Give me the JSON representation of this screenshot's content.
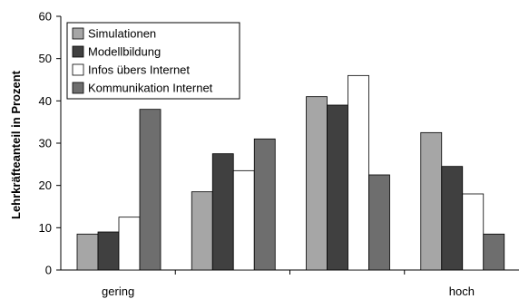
{
  "chart_data": {
    "type": "bar",
    "title": "",
    "xlabel": "",
    "ylabel": "Lehrkräfteanteil in Prozent",
    "ylim": [
      0,
      60
    ],
    "yticks": [
      0,
      10,
      20,
      30,
      40,
      50,
      60
    ],
    "grid": false,
    "legend_position": "top-left",
    "categories": [
      "gering",
      "",
      "",
      "hoch"
    ],
    "series": [
      {
        "name": "Simulationen",
        "color": "#a6a6a6",
        "values": [
          8.5,
          18.5,
          41,
          32.5
        ]
      },
      {
        "name": "Modellbildung",
        "color": "#404040",
        "values": [
          9,
          27.5,
          39,
          24.5
        ]
      },
      {
        "name": "Infos übers Internet",
        "color": "#ffffff",
        "values": [
          12.5,
          23.5,
          46,
          18
        ]
      },
      {
        "name": "Kommunikation Internet",
        "color": "#6e6e6e",
        "values": [
          38,
          31,
          22.5,
          8.5
        ]
      }
    ]
  }
}
